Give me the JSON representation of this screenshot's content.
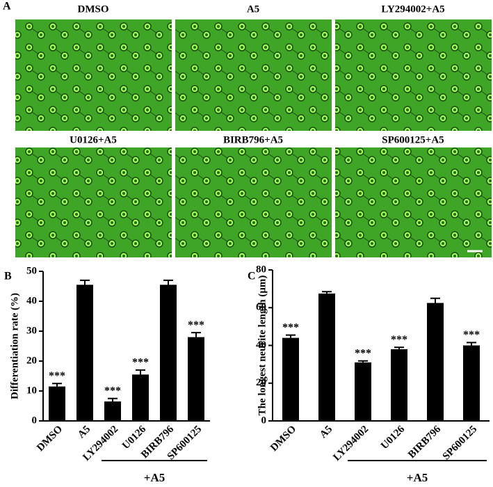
{
  "panel_labels": [
    "A",
    "B",
    "C"
  ],
  "micrographs": [
    "DMSO",
    "A5",
    "LY294002+A5",
    "U0126+A5",
    "BIRB796+A5",
    "SP600125+A5"
  ],
  "chart_data": [
    {
      "type": "bar",
      "ylabel": "Differentiation rate (%)",
      "categories": [
        "DMSO",
        "A5",
        "LY294002",
        "U0126",
        "BIRB796",
        "SP600125"
      ],
      "values": [
        11.5,
        45.5,
        6.5,
        15.5,
        45.5,
        28
      ],
      "errors": [
        1,
        1.5,
        1,
        1.5,
        1.5,
        1.5
      ],
      "annotations": [
        "***",
        null,
        "***",
        "***",
        null,
        "***"
      ],
      "group_label": "+A5",
      "color": "#000000",
      "ylim": [
        0,
        50
      ],
      "yticks": [
        0,
        10,
        20,
        30,
        40,
        50
      ]
    },
    {
      "type": "bar",
      "ylabel": "The longest neurite length (μm)",
      "categories": [
        "DMSO",
        "A5",
        "LY294002",
        "U0126",
        "BIRB796",
        "SP600125"
      ],
      "values": [
        44,
        67.5,
        31,
        38,
        62.5,
        40
      ],
      "errors": [
        1.5,
        1,
        0.8,
        1,
        2.5,
        1.5
      ],
      "annotations": [
        "***",
        null,
        "***",
        "***",
        null,
        "***"
      ],
      "group_label": "+A5",
      "color": "#000000",
      "ylim": [
        0,
        80
      ],
      "yticks": [
        0,
        20,
        40,
        60,
        80
      ]
    }
  ]
}
